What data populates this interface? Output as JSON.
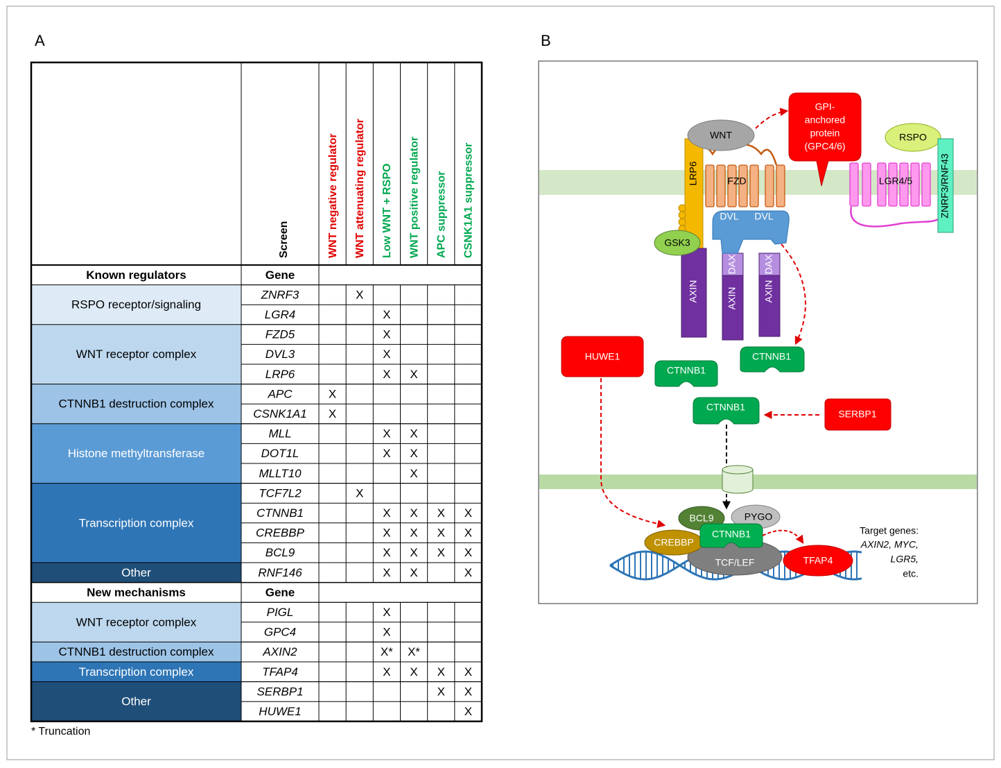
{
  "panel_a": {
    "label": "A",
    "screen_header": "Screen",
    "columns": [
      {
        "label": "WNT negative regulator",
        "color": "#e00000"
      },
      {
        "label": "WNT attenuating regulator",
        "color": "#e00000"
      },
      {
        "label": "Low WNT + RSPO",
        "color": "#00a84f"
      },
      {
        "label": "WNT positive regulator",
        "color": "#00a84f"
      },
      {
        "label": "APC suppressor",
        "color": "#00a84f"
      },
      {
        "label": "CSNK1A1 suppressor",
        "color": "#00a84f"
      }
    ],
    "sections": [
      {
        "title": "Known regulators",
        "gene_header": "Gene",
        "groups": [
          {
            "name": "RSPO receptor/signaling",
            "fill": "#deebf7",
            "text_color": "#000000",
            "rows": [
              {
                "gene": "ZNRF3",
                "marks": [
                  null,
                  "X",
                  null,
                  null,
                  null,
                  null
                ]
              },
              {
                "gene": "LGR4",
                "marks": [
                  null,
                  null,
                  "X",
                  null,
                  null,
                  null
                ]
              }
            ]
          },
          {
            "name": "WNT receptor complex",
            "fill": "#bdd7ee",
            "text_color": "#000000",
            "rows": [
              {
                "gene": "FZD5",
                "marks": [
                  null,
                  null,
                  "X",
                  null,
                  null,
                  null
                ]
              },
              {
                "gene": "DVL3",
                "marks": [
                  null,
                  null,
                  "X",
                  null,
                  null,
                  null
                ]
              },
              {
                "gene": "LRP6",
                "marks": [
                  null,
                  null,
                  "X",
                  "X",
                  null,
                  null
                ]
              }
            ]
          },
          {
            "name": "CTNNB1 destruction complex",
            "fill": "#9dc3e6",
            "text_color": "#000000",
            "rows": [
              {
                "gene": "APC",
                "marks": [
                  "X",
                  null,
                  null,
                  null,
                  null,
                  null
                ]
              },
              {
                "gene": "CSNK1A1",
                "marks": [
                  "X",
                  null,
                  null,
                  null,
                  null,
                  null
                ]
              }
            ]
          },
          {
            "name": "Histone methyltransferase",
            "fill": "#5b9bd5",
            "text_color": "#ffffff",
            "rows": [
              {
                "gene": "MLL",
                "marks": [
                  null,
                  null,
                  "X",
                  "X",
                  null,
                  null
                ]
              },
              {
                "gene": "DOT1L",
                "marks": [
                  null,
                  null,
                  "X",
                  "X",
                  null,
                  null
                ]
              },
              {
                "gene": "MLLT10",
                "marks": [
                  null,
                  null,
                  null,
                  "X",
                  null,
                  null
                ]
              }
            ]
          },
          {
            "name": "Transcription complex",
            "fill": "#2e75b6",
            "text_color": "#ffffff",
            "rows": [
              {
                "gene": "TCF7L2",
                "marks": [
                  null,
                  "X",
                  null,
                  null,
                  null,
                  null
                ]
              },
              {
                "gene": "CTNNB1",
                "marks": [
                  null,
                  null,
                  "X",
                  "X",
                  "X",
                  "X"
                ]
              },
              {
                "gene": "CREBBP",
                "marks": [
                  null,
                  null,
                  "X",
                  "X",
                  "X",
                  "X"
                ]
              },
              {
                "gene": "BCL9",
                "marks": [
                  null,
                  null,
                  "X",
                  "X",
                  "X",
                  "X"
                ]
              }
            ]
          },
          {
            "name": "Other",
            "fill": "#1f4e79",
            "text_color": "#ffffff",
            "rows": [
              {
                "gene": "RNF146",
                "marks": [
                  null,
                  null,
                  "X",
                  "X",
                  null,
                  "X"
                ]
              }
            ]
          }
        ]
      },
      {
        "title": "New mechanisms",
        "gene_header": "Gene",
        "groups": [
          {
            "name": "WNT receptor complex",
            "fill": "#bdd7ee",
            "text_color": "#000000",
            "rows": [
              {
                "gene": "PIGL",
                "marks": [
                  null,
                  null,
                  "X",
                  null,
                  null,
                  null
                ]
              },
              {
                "gene": "GPC4",
                "marks": [
                  null,
                  null,
                  "X",
                  null,
                  null,
                  null
                ]
              }
            ]
          },
          {
            "name": "CTNNB1 destruction complex",
            "fill": "#9dc3e6",
            "text_color": "#000000",
            "rows": [
              {
                "gene": "AXIN2",
                "marks": [
                  null,
                  null,
                  "X*",
                  "X*",
                  null,
                  null
                ]
              }
            ]
          },
          {
            "name": "Transcription complex",
            "fill": "#2e75b6",
            "text_color": "#ffffff",
            "rows": [
              {
                "gene": "TFAP4",
                "marks": [
                  null,
                  null,
                  "X",
                  "X",
                  "X",
                  "X"
                ]
              }
            ]
          },
          {
            "name": "Other",
            "fill": "#1f4e79",
            "text_color": "#ffffff",
            "rows": [
              {
                "gene": "SERBP1",
                "marks": [
                  null,
                  null,
                  null,
                  null,
                  "X",
                  "X"
                ]
              },
              {
                "gene": "HUWE1",
                "marks": [
                  null,
                  null,
                  null,
                  null,
                  null,
                  "X"
                ]
              }
            ]
          }
        ]
      }
    ],
    "footnote": "* Truncation"
  },
  "panel_b": {
    "label": "B",
    "wnt": "WNT",
    "gpi": [
      "GPI-",
      "anchored",
      "protein",
      "(GPC4/6)"
    ],
    "rspo": "RSPO",
    "lrp6": "LRP6",
    "fzd": "FZD",
    "lgr": "LGR4/5",
    "znrf3": "ZNRF3/RNF43",
    "dvl": [
      "DVL",
      "DVL"
    ],
    "gsk3": "GSK3",
    "dax": [
      "DAX",
      "DAX"
    ],
    "axin": [
      "AXIN",
      "AXIN",
      "AXIN"
    ],
    "huwe1": "HUWE1",
    "ctnnb1": [
      "CTNNB1",
      "CTNNB1",
      "CTNNB1",
      "CTNNB1"
    ],
    "serbp1": "SERBP1",
    "bcl9": "BCL9",
    "pygo": "PYGO",
    "crebbp": "CREBBP",
    "tcf": "TCF/LEF",
    "tfap4": "TFAP4",
    "target_genes": [
      "Target genes:",
      "AXIN2, MYC,",
      "LGR5,",
      "etc."
    ]
  }
}
